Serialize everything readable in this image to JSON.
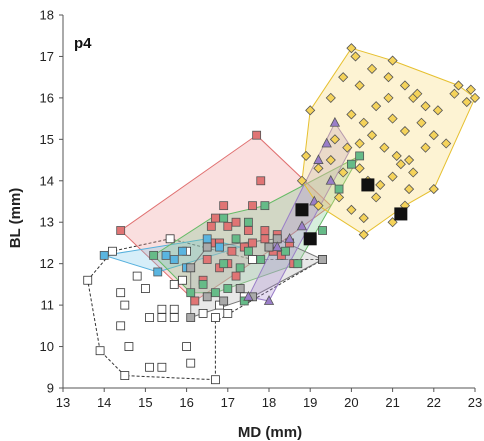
{
  "chart_data": {
    "type": "scatter",
    "panel_label": "p4",
    "xlabel": "MD (mm)",
    "ylabel": "BL (mm)",
    "xlim": [
      13,
      23
    ],
    "ylim": [
      9,
      18
    ],
    "x_ticks": [
      13,
      14,
      15,
      16,
      17,
      18,
      19,
      20,
      21,
      22,
      23
    ],
    "y_ticks": [
      9,
      10,
      11,
      12,
      13,
      14,
      15,
      16,
      17,
      18
    ],
    "grid": false,
    "legend": "none",
    "series": [
      {
        "marker": "square",
        "fill": "#ffffff",
        "stroke": "#333333",
        "hull_fill": "none",
        "hull_stroke": "#333333",
        "hull_dash": true,
        "hull": [
          [
            13.6,
            11.6
          ],
          [
            14.2,
            12.3
          ],
          [
            15.6,
            12.6
          ],
          [
            17.6,
            12.1
          ],
          [
            19.3,
            12.1
          ],
          [
            16.7,
            10.6
          ],
          [
            16.7,
            9.2
          ],
          [
            14.5,
            9.3
          ],
          [
            13.9,
            9.9
          ]
        ],
        "points": [
          [
            13.6,
            11.6
          ],
          [
            14.2,
            12.3
          ],
          [
            13.9,
            9.9
          ],
          [
            14.5,
            9.3
          ],
          [
            16.7,
            9.2
          ],
          [
            14.4,
            11.3
          ],
          [
            14.5,
            11.0
          ],
          [
            14.4,
            10.5
          ],
          [
            14.6,
            10.0
          ],
          [
            14.8,
            11.7
          ],
          [
            15.0,
            11.4
          ],
          [
            15.1,
            10.7
          ],
          [
            15.4,
            10.7
          ],
          [
            15.4,
            10.9
          ],
          [
            15.7,
            10.9
          ],
          [
            15.7,
            10.7
          ],
          [
            15.1,
            9.5
          ],
          [
            15.4,
            9.5
          ],
          [
            15.9,
            11.6
          ],
          [
            16.0,
            12.3
          ],
          [
            15.6,
            12.6
          ],
          [
            15.7,
            11.5
          ],
          [
            16.0,
            10.0
          ],
          [
            16.1,
            9.6
          ],
          [
            16.4,
            10.8
          ],
          [
            16.7,
            10.7
          ],
          [
            16.8,
            11.0
          ],
          [
            17.0,
            10.8
          ],
          [
            17.4,
            11.2
          ],
          [
            17.6,
            12.1
          ],
          [
            19.3,
            12.1
          ]
        ]
      },
      {
        "marker": "square",
        "fill": "#e07474",
        "stroke": "#555555",
        "hull_fill": "rgba(240,150,150,0.30)",
        "hull_stroke": "#e07070",
        "hull_dash": false,
        "hull": [
          [
            14.4,
            12.8
          ],
          [
            17.7,
            15.1
          ],
          [
            19.5,
            13.4
          ],
          [
            18.0,
            12.3
          ],
          [
            16.2,
            11.1
          ]
        ],
        "points": [
          [
            14.4,
            12.8
          ],
          [
            17.7,
            15.1
          ],
          [
            17.8,
            14.0
          ],
          [
            17.6,
            13.4
          ],
          [
            16.9,
            13.4
          ],
          [
            16.7,
            13.1
          ],
          [
            16.6,
            12.9
          ],
          [
            17.0,
            12.9
          ],
          [
            17.2,
            13.0
          ],
          [
            17.5,
            12.8
          ],
          [
            17.9,
            12.8
          ],
          [
            16.6,
            12.5
          ],
          [
            16.8,
            12.5
          ],
          [
            17.1,
            12.3
          ],
          [
            17.4,
            12.4
          ],
          [
            17.6,
            12.5
          ],
          [
            17.9,
            12.6
          ],
          [
            18.2,
            12.7
          ],
          [
            18.5,
            12.5
          ],
          [
            18.3,
            12.2
          ],
          [
            16.5,
            12.1
          ],
          [
            16.8,
            11.9
          ],
          [
            17.2,
            11.7
          ],
          [
            16.4,
            11.6
          ],
          [
            16.2,
            11.1
          ],
          [
            17.0,
            12.0
          ],
          [
            18.1,
            12.3
          ],
          [
            18.6,
            12.0
          ]
        ]
      },
      {
        "marker": "square",
        "fill": "#5ab5e0",
        "stroke": "#555555",
        "hull_fill": "rgba(120,200,235,0.30)",
        "hull_stroke": "#55b0dd",
        "hull_dash": false,
        "hull": [
          [
            14.0,
            12.2
          ],
          [
            16.5,
            12.6
          ],
          [
            17.3,
            12.4
          ],
          [
            15.3,
            11.8
          ]
        ],
        "points": [
          [
            14.0,
            12.2
          ],
          [
            15.3,
            11.8
          ],
          [
            15.5,
            12.2
          ],
          [
            15.7,
            12.1
          ],
          [
            15.9,
            12.3
          ],
          [
            16.0,
            11.9
          ],
          [
            16.5,
            12.6
          ],
          [
            16.8,
            12.4
          ]
        ]
      },
      {
        "marker": "square",
        "fill": "#66bb88",
        "stroke": "#555555",
        "hull_fill": "rgba(120,200,140,0.30)",
        "hull_stroke": "#66bb66",
        "hull_dash": false,
        "hull": [
          [
            15.2,
            12.2
          ],
          [
            16.6,
            13.1
          ],
          [
            17.9,
            13.4
          ],
          [
            20.2,
            14.6
          ],
          [
            18.7,
            12.0
          ],
          [
            16.7,
            11.3
          ],
          [
            16.1,
            11.3
          ]
        ],
        "points": [
          [
            15.2,
            12.2
          ],
          [
            16.1,
            11.3
          ],
          [
            16.4,
            11.5
          ],
          [
            16.7,
            11.3
          ],
          [
            16.9,
            13.1
          ],
          [
            17.9,
            13.4
          ],
          [
            17.5,
            13.0
          ],
          [
            17.2,
            12.6
          ],
          [
            17.5,
            12.3
          ],
          [
            17.8,
            12.1
          ],
          [
            18.0,
            12.4
          ],
          [
            18.4,
            12.3
          ],
          [
            16.9,
            12.0
          ],
          [
            17.3,
            11.9
          ],
          [
            17.0,
            11.4
          ],
          [
            17.4,
            11.1
          ],
          [
            18.7,
            12.0
          ],
          [
            19.0,
            12.6
          ],
          [
            19.3,
            12.8
          ],
          [
            19.7,
            13.8
          ],
          [
            20.0,
            14.4
          ],
          [
            20.2,
            14.6
          ]
        ]
      },
      {
        "marker": "square",
        "fill": "#aaaaaa",
        "stroke": "#444444",
        "hull_fill": "rgba(190,190,190,0.35)",
        "hull_stroke": "#777777",
        "hull_dash": false,
        "hull": [
          [
            16.1,
            10.7
          ],
          [
            17.6,
            11.2
          ],
          [
            19.3,
            12.1
          ],
          [
            18.2,
            12.6
          ],
          [
            16.5,
            12.4
          ],
          [
            16.1,
            11.9
          ]
        ],
        "points": [
          [
            16.1,
            10.7
          ],
          [
            16.5,
            11.2
          ],
          [
            16.9,
            11.1
          ],
          [
            17.3,
            11.4
          ],
          [
            17.6,
            11.2
          ],
          [
            18.0,
            12.4
          ],
          [
            18.2,
            12.6
          ],
          [
            19.3,
            12.1
          ],
          [
            16.5,
            12.4
          ],
          [
            16.1,
            11.9
          ]
        ]
      },
      {
        "marker": "triangle",
        "fill": "#9a7ec8",
        "stroke": "#555555",
        "hull_fill": "rgba(170,140,210,0.30)",
        "hull_stroke": "#9a7ec8",
        "hull_dash": false,
        "hull": [
          [
            17.5,
            11.2
          ],
          [
            19.6,
            15.4
          ],
          [
            20.0,
            14.8
          ],
          [
            18.0,
            11.1
          ]
        ],
        "points": [
          [
            17.5,
            11.2
          ],
          [
            18.0,
            11.1
          ],
          [
            19.6,
            15.4
          ],
          [
            19.4,
            14.9
          ],
          [
            19.2,
            14.5
          ],
          [
            19.5,
            14.0
          ],
          [
            19.1,
            13.5
          ],
          [
            18.8,
            12.9
          ],
          [
            18.5,
            12.6
          ],
          [
            18.2,
            12.4
          ]
        ]
      },
      {
        "marker": "diamond",
        "fill": "#f5d35a",
        "stroke": "#555555",
        "hull_fill": "rgba(250,215,110,0.30)",
        "hull_stroke": "#e6c030",
        "hull_dash": false,
        "hull": [
          [
            19.0,
            15.7
          ],
          [
            20.0,
            17.2
          ],
          [
            21.0,
            16.9
          ],
          [
            22.6,
            16.3
          ],
          [
            23.0,
            16.0
          ],
          [
            22.0,
            13.8
          ],
          [
            21.3,
            13.4
          ],
          [
            20.3,
            12.7
          ],
          [
            19.2,
            13.4
          ],
          [
            18.8,
            14.0
          ]
        ],
        "points": [
          [
            19.0,
            15.7
          ],
          [
            20.0,
            17.2
          ],
          [
            20.1,
            17.0
          ],
          [
            21.0,
            16.9
          ],
          [
            22.6,
            16.3
          ],
          [
            23.0,
            16.0
          ],
          [
            22.0,
            13.8
          ],
          [
            21.3,
            13.4
          ],
          [
            20.3,
            12.7
          ],
          [
            19.2,
            13.4
          ],
          [
            18.8,
            14.0
          ],
          [
            19.5,
            16.0
          ],
          [
            19.8,
            16.5
          ],
          [
            20.2,
            16.3
          ],
          [
            20.5,
            16.7
          ],
          [
            20.9,
            16.5
          ],
          [
            21.3,
            16.3
          ],
          [
            21.5,
            16.0
          ],
          [
            21.8,
            15.8
          ],
          [
            22.1,
            15.7
          ],
          [
            22.5,
            16.1
          ],
          [
            22.8,
            15.9
          ],
          [
            22.9,
            16.2
          ],
          [
            20.0,
            15.6
          ],
          [
            20.3,
            15.4
          ],
          [
            20.6,
            15.8
          ],
          [
            21.0,
            15.5
          ],
          [
            21.3,
            15.2
          ],
          [
            21.7,
            15.4
          ],
          [
            22.0,
            15.1
          ],
          [
            22.3,
            14.9
          ],
          [
            19.6,
            15.0
          ],
          [
            19.9,
            14.8
          ],
          [
            20.2,
            14.9
          ],
          [
            20.5,
            15.1
          ],
          [
            20.8,
            14.8
          ],
          [
            21.1,
            14.6
          ],
          [
            21.4,
            14.5
          ],
          [
            21.8,
            14.8
          ],
          [
            19.5,
            14.5
          ],
          [
            19.8,
            14.2
          ],
          [
            20.2,
            14.3
          ],
          [
            20.4,
            14.0
          ],
          [
            20.7,
            13.9
          ],
          [
            21.0,
            14.1
          ],
          [
            21.2,
            14.4
          ],
          [
            21.5,
            14.2
          ],
          [
            19.7,
            13.6
          ],
          [
            20.0,
            13.3
          ],
          [
            20.3,
            13.1
          ],
          [
            20.6,
            13.6
          ],
          [
            21.0,
            13.0
          ],
          [
            21.4,
            13.8
          ],
          [
            18.9,
            14.6
          ],
          [
            19.2,
            14.3
          ],
          [
            20.9,
            16.0
          ],
          [
            21.6,
            16.1
          ]
        ]
      },
      {
        "marker": "square-large",
        "fill": "#111111",
        "stroke": "#111111",
        "points": [
          [
            18.8,
            13.3
          ],
          [
            19.0,
            12.6
          ],
          [
            20.4,
            13.9
          ],
          [
            21.2,
            13.2
          ]
        ]
      }
    ]
  }
}
